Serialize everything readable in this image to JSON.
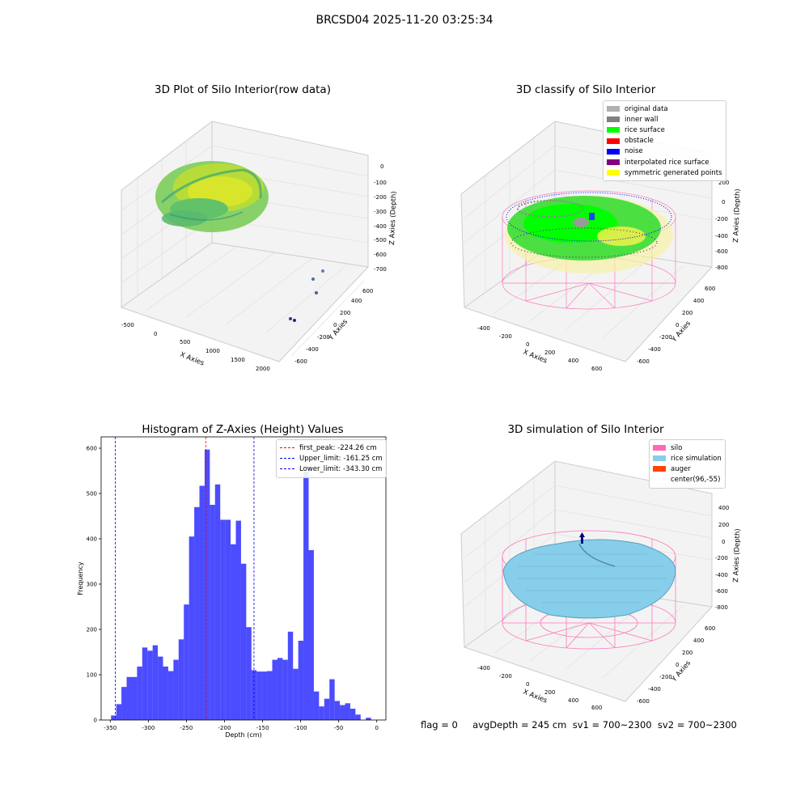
{
  "figure": {
    "suptitle": "BRCSD04 2025-11-20 03:25:34",
    "footer": "flag = 0     avgDepth = 245 cm  sv1 = 700~2300  sv2 = 700~2300"
  },
  "panels": {
    "raw": {
      "title": "3D Plot of Silo Interior(row data)",
      "xlabel": "X Axies",
      "ylabel": "Y Axies",
      "zlabel": "Z Axies (Depth)",
      "xticks": [
        "-500",
        "0",
        "500",
        "1000",
        "1500",
        "2000"
      ],
      "yticks": [
        "-600",
        "-400",
        "-200",
        "0",
        "200",
        "400",
        "600"
      ],
      "zticks": [
        "0",
        "-100",
        "-200",
        "-300",
        "-400",
        "-500",
        "-600",
        "-700"
      ]
    },
    "classify": {
      "title": "3D classify of Silo Interior",
      "xlabel": "X Axies",
      "ylabel": "Y Axies",
      "zlabel": "Z Axies (Depth)",
      "xticks": [
        "-400",
        "-200",
        "0",
        "200",
        "400",
        "600"
      ],
      "yticks": [
        "-600",
        "-400",
        "-200",
        "0",
        "200",
        "400",
        "600"
      ],
      "zticks": [
        "200",
        "0",
        "-200",
        "-400",
        "-600",
        "-800"
      ],
      "legend": [
        {
          "label": "original data",
          "color": "#b0b0b0"
        },
        {
          "label": "inner wall",
          "color": "#808080"
        },
        {
          "label": "rice surface",
          "color": "#00ff00"
        },
        {
          "label": "obstacle",
          "color": "#ff0000"
        },
        {
          "label": "noise",
          "color": "#0000ff"
        },
        {
          "label": "interpolated rice surface",
          "color": "#800080"
        },
        {
          "label": "symmetric generated points",
          "color": "#ffff00"
        }
      ]
    },
    "simulation": {
      "title": "3D simulation of Silo Interior",
      "xlabel": "X Axies",
      "ylabel": "Y Axies",
      "zlabel": "Z Axies (Depth)",
      "xticks": [
        "-400",
        "-200",
        "0",
        "200",
        "400",
        "600"
      ],
      "yticks": [
        "-600",
        "-400",
        "-200",
        "0",
        "200",
        "400",
        "600"
      ],
      "zticks": [
        "400",
        "200",
        "0",
        "-200",
        "-400",
        "-600",
        "-800"
      ],
      "legend": [
        {
          "label": "silo",
          "color": "#ff69b4"
        },
        {
          "label": "rice simulation",
          "color": "#87ceeb"
        },
        {
          "label": "auger",
          "color": "#ff4500"
        },
        {
          "label": "center(96,-55)",
          "color": "#ffffff"
        }
      ]
    }
  },
  "chart_data": {
    "type": "bar",
    "title": "Histogram of Z-Axies (Height) Values",
    "xlabel": "Depth (cm)",
    "ylabel": "Frequency",
    "xlim": [
      -362,
      12
    ],
    "ylim": [
      0,
      625
    ],
    "xticks": [
      -350,
      -300,
      -250,
      -200,
      -150,
      -100,
      -50,
      0
    ],
    "yticks": [
      0,
      100,
      200,
      300,
      400,
      500,
      600
    ],
    "bar_color": "#0000ff",
    "bin_width": 6.83,
    "bin_starts": [
      -349,
      -342.17,
      -335.34,
      -328.51,
      -321.68,
      -314.85,
      -308.02,
      -301.19,
      -294.36,
      -287.53,
      -280.7,
      -273.87,
      -267.04,
      -260.21,
      -253.38,
      -246.55,
      -239.72,
      -232.89,
      -226.06,
      -219.23,
      -212.4,
      -205.57,
      -198.74,
      -191.91,
      -185.08,
      -178.25,
      -171.42,
      -164.59,
      -157.76,
      -150.93,
      -144.1,
      -137.27,
      -130.44,
      -123.61,
      -116.78,
      -109.95,
      -103.12,
      -96.29,
      -89.46,
      -82.63,
      -75.8,
      -68.97,
      -62.14,
      -55.31,
      -48.48,
      -41.65,
      -34.82,
      -27.99,
      -21.16,
      -14.33,
      -7.5,
      -0.67
    ],
    "values": [
      10,
      35,
      73,
      95,
      95,
      118,
      160,
      153,
      165,
      140,
      118,
      108,
      133,
      178,
      255,
      405,
      470,
      517,
      597,
      475,
      520,
      442,
      442,
      388,
      440,
      345,
      205,
      110,
      107,
      107,
      108,
      133,
      137,
      133,
      195,
      113,
      175,
      548,
      375,
      63,
      30,
      47,
      90,
      42,
      33,
      37,
      25,
      12,
      0,
      5,
      0,
      0
    ],
    "lines": [
      {
        "name": "first_peak: -224.26 cm",
        "x": -224.26,
        "color": "#ff0000"
      },
      {
        "name": "Upper_limit: -161.25 cm",
        "x": -161.25,
        "color": "#0000ff"
      },
      {
        "name": "Lower_limit: -343.30 cm",
        "x": -343.3,
        "color": "#0000ff"
      }
    ],
    "legend_position": "upper right"
  }
}
